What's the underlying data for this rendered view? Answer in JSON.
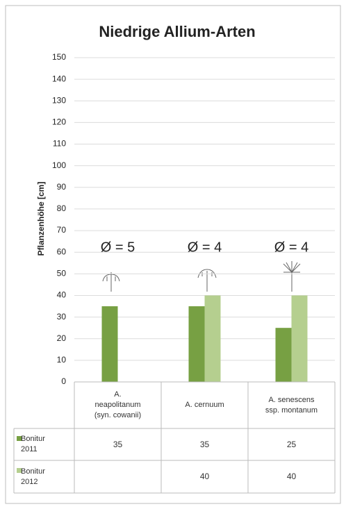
{
  "chart_data": {
    "type": "bar",
    "title": "Niedrige Allium-Arten",
    "y_label": "Pflanzenhöhe [cm]",
    "categories": [
      "A. neapolitanum (syn. cowanii)",
      "A. cernuum",
      "A. senescens ssp. montanum"
    ],
    "series": [
      {
        "name": "Bonitur 2011",
        "color": "#77a043",
        "values": [
          35,
          35,
          25
        ]
      },
      {
        "name": "Bonitur 2012",
        "color": "#b5cf8f",
        "values": [
          null,
          40,
          40
        ]
      }
    ],
    "annotations": [
      "Ø = 5",
      "Ø = 4",
      "Ø = 4"
    ],
    "ylim": [
      0,
      150
    ],
    "yticks": [
      0,
      10,
      20,
      30,
      40,
      50,
      60,
      70,
      80,
      90,
      100,
      110,
      120,
      130,
      140,
      150
    ],
    "grid": true,
    "data_table": true
  }
}
